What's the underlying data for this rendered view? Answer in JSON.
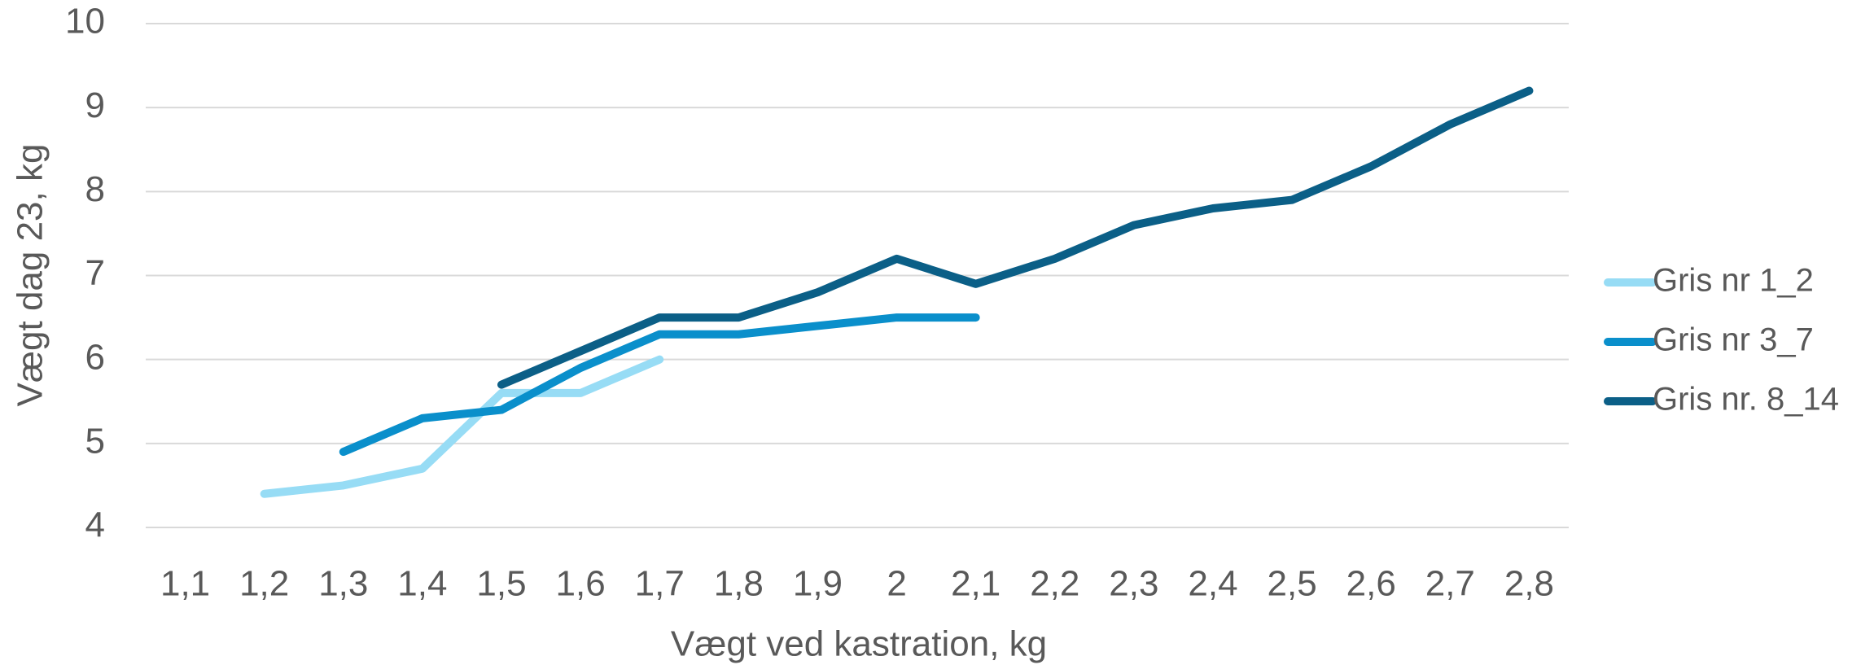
{
  "chart_data": {
    "type": "line",
    "x_label": "Vægt ved kastration, kg",
    "y_label": "Vægt dag 23, kg",
    "categories": [
      "1,1",
      "1,2",
      "1,3",
      "1,4",
      "1,5",
      "1,6",
      "1,7",
      "1,8",
      "1,9",
      "2",
      "2,1",
      "2,2",
      "2,3",
      "2,4",
      "2,5",
      "2,6",
      "2,7",
      "2,8"
    ],
    "series": [
      {
        "name": "Gris nr 1_2",
        "color": "#97dcf5",
        "values": [
          null,
          4.4,
          4.5,
          4.7,
          5.6,
          5.6,
          6.0,
          null,
          null,
          null,
          null,
          null,
          null,
          null,
          null,
          null,
          null,
          null
        ]
      },
      {
        "name": "Gris nr 3_7",
        "color": "#0a8fcb",
        "values": [
          null,
          null,
          4.9,
          5.3,
          5.4,
          5.9,
          6.3,
          6.3,
          6.4,
          6.5,
          6.5,
          null,
          null,
          null,
          null,
          null,
          null,
          null
        ]
      },
      {
        "name": "Gris nr. 8_14",
        "color": "#0b5f87",
        "values": [
          null,
          null,
          null,
          null,
          5.7,
          6.1,
          6.5,
          6.5,
          6.8,
          7.2,
          6.9,
          7.2,
          7.6,
          7.8,
          7.9,
          8.3,
          8.8,
          9.2
        ]
      }
    ],
    "ylim": [
      4,
      10
    ],
    "yticks": [
      4,
      5,
      6,
      7,
      8,
      9,
      10
    ],
    "grid": true,
    "legend": "right"
  }
}
